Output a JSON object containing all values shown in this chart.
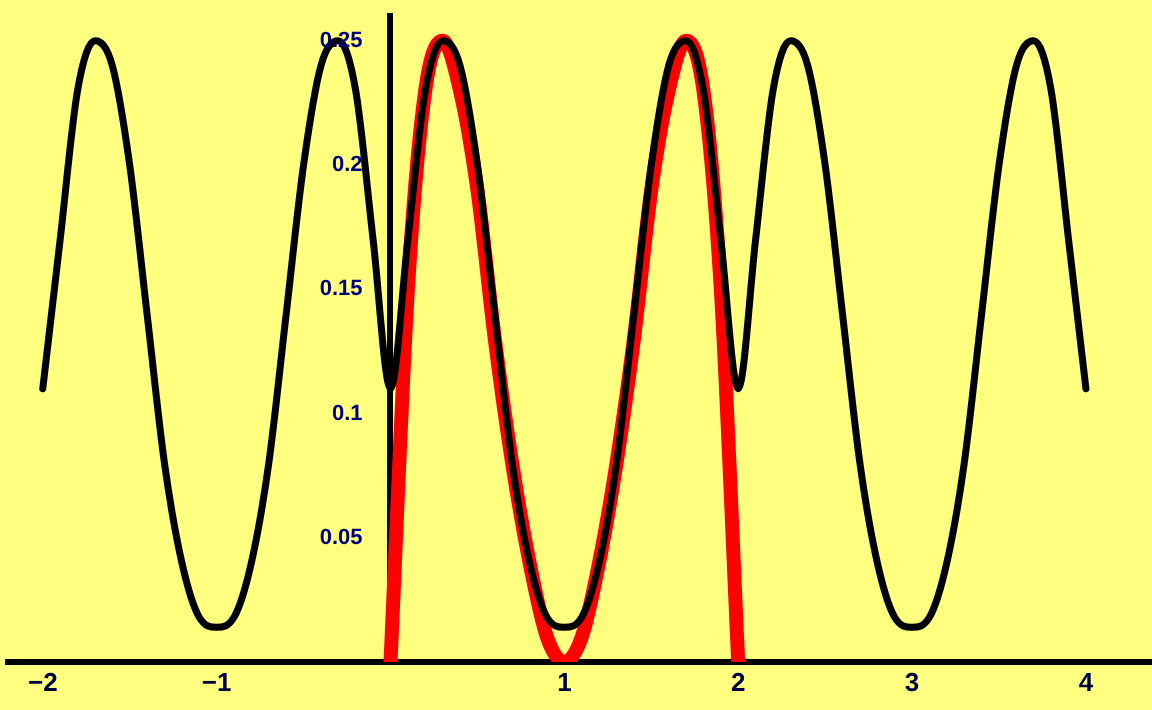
{
  "chart_data": {
    "type": "line",
    "xlim": [
      -2.2,
      4.38
    ],
    "ylim": [
      0,
      0.26
    ],
    "xticks": [
      -2,
      -1,
      1,
      2,
      3,
      4
    ],
    "yticks": [
      0.05,
      0.1,
      0.15,
      0.2,
      0.25
    ],
    "grid": false,
    "legend": false,
    "marker": "none",
    "line_style": "solid",
    "series": [
      {
        "color": "#000000",
        "x": [
          -2,
          -1.9,
          -1.8,
          -1.7,
          -1.6,
          -1.5,
          -1.4,
          -1.3,
          -1.2,
          -1.1,
          -1,
          -0.9,
          -0.8,
          -0.7,
          -0.6,
          -0.5,
          -0.4,
          -0.3,
          -0.2,
          -0.1,
          0,
          0.1,
          0.2,
          0.3,
          0.4,
          0.5,
          0.6,
          0.7,
          0.8,
          0.9,
          1,
          1.1,
          1.2,
          1.3,
          1.4,
          1.5,
          1.6,
          1.7,
          1.8,
          1.9,
          2,
          2.1,
          2.2,
          2.3,
          2.4,
          2.5,
          2.6,
          2.7,
          2.8,
          2.9,
          3,
          3.1,
          3.2,
          3.3,
          3.4,
          3.5,
          3.6,
          3.7,
          3.8,
          3.9,
          4
        ],
        "values": [
          0.11,
          0.17,
          0.23,
          0.25,
          0.24,
          0.2,
          0.14,
          0.08,
          0.04,
          0.018,
          0.014,
          0.018,
          0.04,
          0.08,
          0.14,
          0.2,
          0.24,
          0.25,
          0.23,
          0.17,
          0.11,
          0.17,
          0.23,
          0.25,
          0.24,
          0.2,
          0.14,
          0.08,
          0.04,
          0.018,
          0.014,
          0.018,
          0.04,
          0.08,
          0.14,
          0.2,
          0.24,
          0.25,
          0.23,
          0.17,
          0.11,
          0.17,
          0.23,
          0.25,
          0.24,
          0.2,
          0.14,
          0.08,
          0.04,
          0.018,
          0.014,
          0.018,
          0.04,
          0.08,
          0.14,
          0.2,
          0.24,
          0.25,
          0.23,
          0.17,
          0.11
        ]
      },
      {
        "color": "#ff0000",
        "x": [
          0,
          0.1,
          0.2,
          0.3,
          0.4,
          0.5,
          0.6,
          0.7,
          0.8,
          0.9,
          1,
          1.1,
          1.2,
          1.3,
          1.4,
          1.5,
          1.6,
          1.7,
          1.8,
          1.9,
          2
        ],
        "values": [
          0,
          0.15,
          0.23,
          0.25,
          0.23,
          0.19,
          0.13,
          0.08,
          0.04,
          0.01,
          0,
          0.01,
          0.04,
          0.08,
          0.13,
          0.19,
          0.23,
          0.25,
          0.23,
          0.15,
          0
        ]
      }
    ]
  }
}
